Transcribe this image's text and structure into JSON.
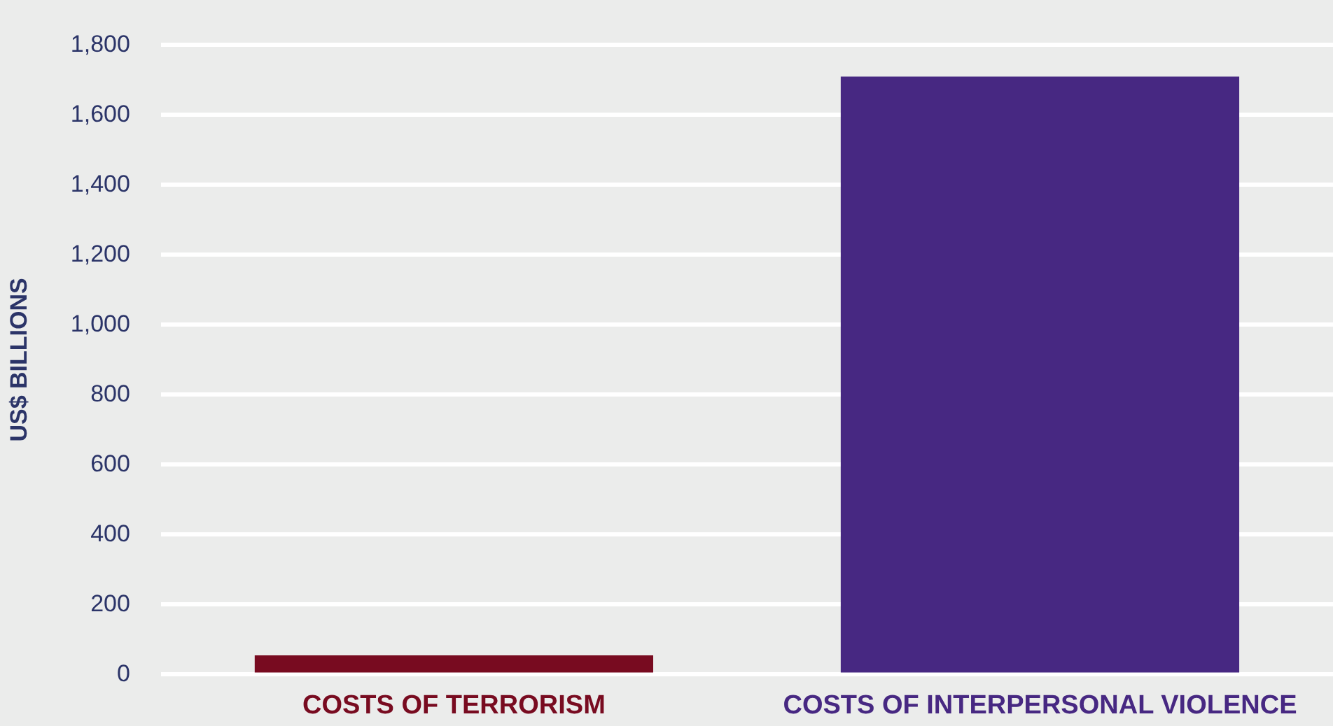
{
  "chart_data": {
    "type": "bar",
    "ylabel": "US$ BILLIONS",
    "categories": [
      "COSTS OF TERRORISM",
      "COSTS OF INTERPERSONAL VIOLENCE"
    ],
    "values": [
      55,
      1710
    ],
    "colors": [
      "#780b20",
      "#472882"
    ],
    "ylim": [
      0,
      1800
    ],
    "yticks": [
      0,
      200,
      400,
      600,
      800,
      {
        "value": 1000,
        "label": "1,000"
      },
      {
        "value": 1200,
        "label": "1,200"
      },
      {
        "value": 1400,
        "label": "1,400"
      },
      {
        "value": 1600,
        "label": "1,600"
      },
      {
        "value": 1800,
        "label": "1,800"
      }
    ],
    "grid": "y",
    "legend": false
  }
}
